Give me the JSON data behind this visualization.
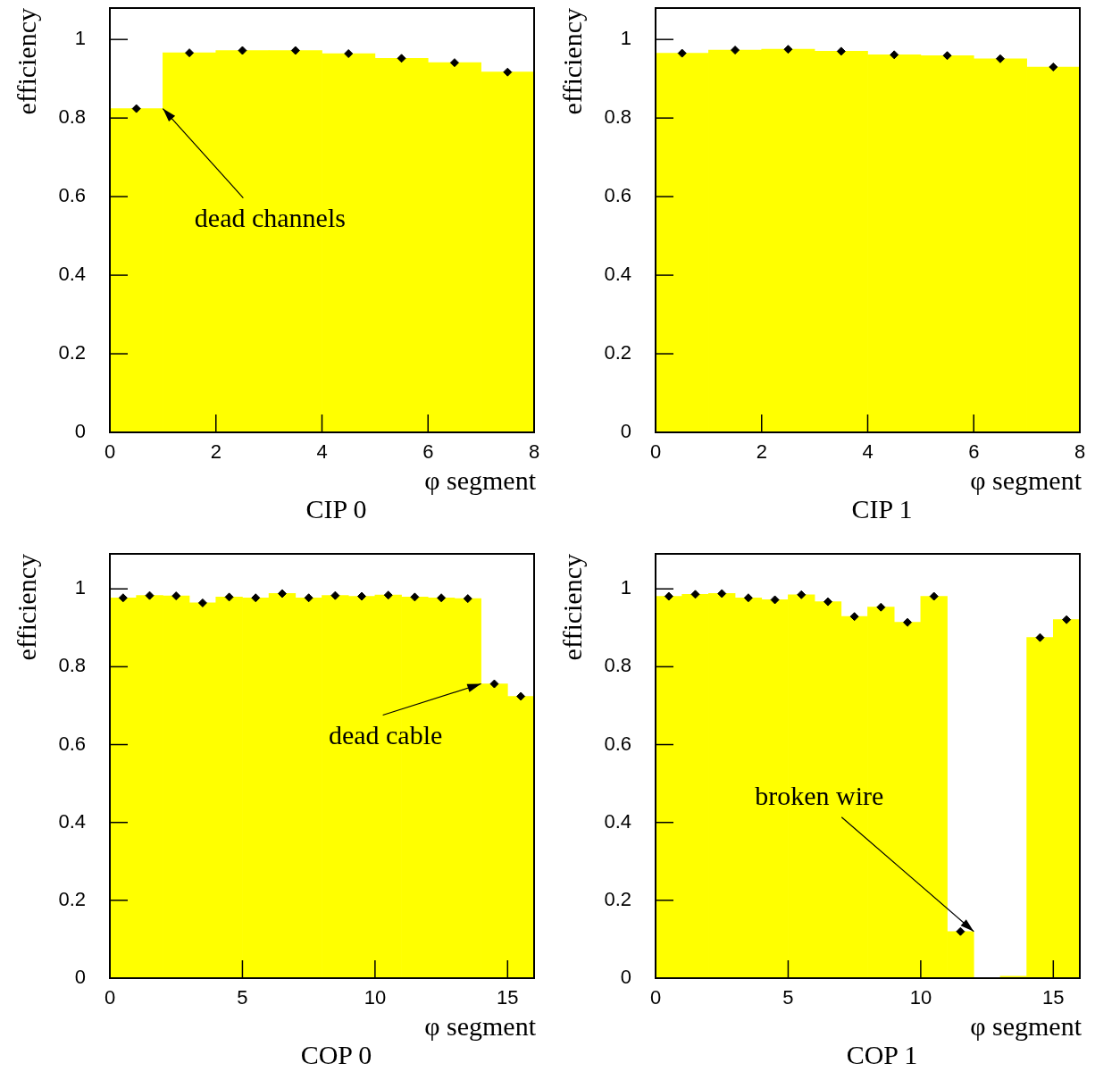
{
  "chart_data": [
    {
      "type": "histogram",
      "title": "CIP 0",
      "xlabel": "φ segment",
      "ylabel": "efficiency",
      "color": "#ffff00",
      "marker": "diamond",
      "bins": [
        0,
        1,
        2,
        3,
        4,
        5,
        6,
        7,
        8
      ],
      "values": [
        0.824,
        0.966,
        0.972,
        0.972,
        0.964,
        0.952,
        0.941,
        0.917
      ],
      "xlim": [
        0,
        8
      ],
      "xticks": [
        0,
        2,
        4,
        6,
        8
      ],
      "ylim": [
        0,
        1.08
      ],
      "yticks": [
        0,
        0.2,
        0.4,
        0.6,
        0.8,
        1
      ],
      "series": [
        {
          "type": "scatter",
          "color": "#000000",
          "x": [
            0.5,
            1.5,
            2.5,
            3.5,
            4.5,
            5.5,
            6.5,
            7.5
          ],
          "values": [
            0.824,
            0.966,
            0.972,
            0.972,
            0.964,
            0.952,
            0.941,
            0.917
          ]
        }
      ],
      "annotations": [
        {
          "text": "dead channels",
          "x": 1,
          "y": 0.824
        }
      ]
    },
    {
      "type": "histogram",
      "title": "CIP 1",
      "xlabel": "φ segment",
      "ylabel": "efficiency",
      "color": "#ffff00",
      "marker": "diamond",
      "bins": [
        0,
        1,
        2,
        3,
        4,
        5,
        6,
        7,
        8
      ],
      "values": [
        0.965,
        0.973,
        0.975,
        0.97,
        0.961,
        0.959,
        0.951,
        0.93
      ],
      "xlim": [
        0,
        8
      ],
      "xticks": [
        0,
        2,
        4,
        6,
        8
      ],
      "ylim": [
        0,
        1.08
      ],
      "yticks": [
        0,
        0.2,
        0.4,
        0.6,
        0.8,
        1
      ],
      "series": [
        {
          "type": "scatter",
          "color": "#000000",
          "x": [
            0.5,
            1.5,
            2.5,
            3.5,
            4.5,
            5.5,
            6.5,
            7.5
          ],
          "values": [
            0.965,
            0.973,
            0.975,
            0.97,
            0.961,
            0.959,
            0.951,
            0.93
          ]
        }
      ]
    },
    {
      "type": "histogram",
      "title": "COP 0",
      "xlabel": "φ segment",
      "ylabel": "efficiency",
      "color": "#ffff00",
      "marker": "diamond",
      "bins": [
        0,
        1,
        2,
        3,
        4,
        5,
        6,
        7,
        8,
        9,
        10,
        11,
        12,
        13,
        14,
        15,
        16
      ],
      "values": [
        0.977,
        0.983,
        0.982,
        0.964,
        0.979,
        0.977,
        0.988,
        0.977,
        0.983,
        0.981,
        0.984,
        0.979,
        0.977,
        0.975,
        0.756,
        0.724
      ],
      "xlim": [
        0,
        16
      ],
      "xticks": [
        0,
        5,
        10,
        15
      ],
      "ylim": [
        0,
        1.09
      ],
      "yticks": [
        0,
        0.2,
        0.4,
        0.6,
        0.8,
        1
      ],
      "series": [
        {
          "type": "scatter",
          "color": "#000000",
          "x": [
            0.5,
            1.5,
            2.5,
            3.5,
            4.5,
            5.5,
            6.5,
            7.5,
            8.5,
            9.5,
            10.5,
            11.5,
            12.5,
            13.5,
            14.5,
            15.5
          ],
          "values": [
            0.977,
            0.983,
            0.982,
            0.964,
            0.979,
            0.977,
            0.988,
            0.977,
            0.983,
            0.981,
            0.984,
            0.979,
            0.977,
            0.975,
            0.756,
            0.724
          ]
        }
      ],
      "annotations": [
        {
          "text": "dead cable",
          "x": 14,
          "y": 0.756
        }
      ]
    },
    {
      "type": "histogram",
      "title": "COP 1",
      "xlabel": "φ segment",
      "ylabel": "efficiency",
      "color": "#ffff00",
      "marker": "diamond",
      "bins": [
        0,
        1,
        2,
        3,
        4,
        5,
        6,
        7,
        8,
        9,
        10,
        11,
        12,
        13,
        14,
        15,
        16
      ],
      "values": [
        0.981,
        0.986,
        0.988,
        0.977,
        0.972,
        0.985,
        0.967,
        0.929,
        0.953,
        0.914,
        0.981,
        0.12,
        0,
        0.005,
        0.875,
        0.921
      ],
      "xlim": [
        0,
        16
      ],
      "xticks": [
        0,
        5,
        10,
        15
      ],
      "ylim": [
        0,
        1.09
      ],
      "yticks": [
        0,
        0.2,
        0.4,
        0.6,
        0.8,
        1
      ],
      "series": [
        {
          "type": "scatter",
          "color": "#000000",
          "x": [
            0.5,
            1.5,
            2.5,
            3.5,
            4.5,
            5.5,
            6.5,
            7.5,
            8.5,
            9.5,
            10.5,
            11.5,
            12.5,
            13.5,
            14.5,
            15.5
          ],
          "values": [
            0.981,
            0.986,
            0.988,
            0.977,
            0.972,
            0.985,
            0.967,
            0.929,
            0.953,
            0.914,
            0.981,
            0.12,
            null,
            null,
            0.875,
            0.921
          ]
        }
      ],
      "annotations": [
        {
          "text": "broken wire",
          "x": 12,
          "y": 0.12
        }
      ]
    }
  ]
}
